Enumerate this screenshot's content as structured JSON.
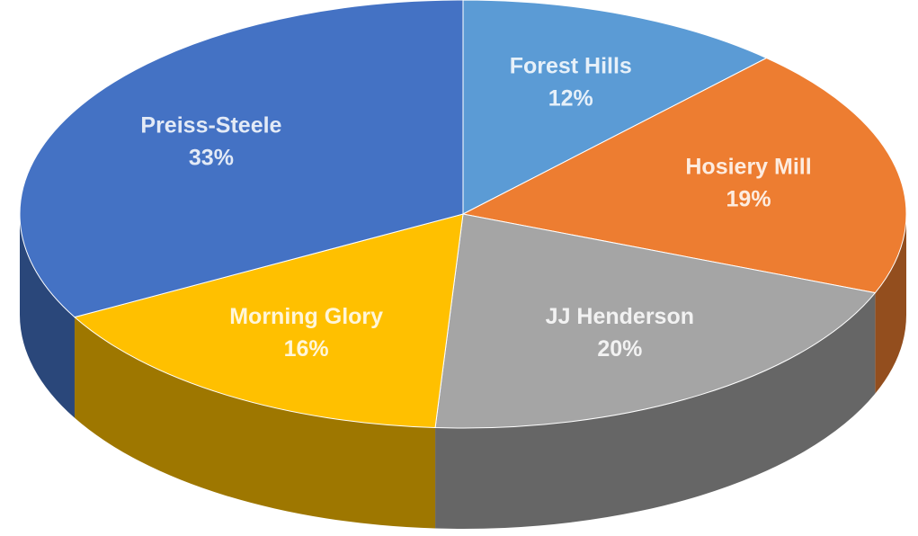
{
  "chart_data": {
    "type": "pie",
    "categories": [
      "Forest Hills",
      "Hosiery Mill",
      "JJ Henderson",
      "Morning Glory",
      "Preiss-Steele"
    ],
    "values": [
      12,
      19,
      20,
      16,
      33
    ],
    "value_labels": [
      "12%",
      "19%",
      "20%",
      "16%",
      "33%"
    ],
    "colors": [
      "#5b9bd5",
      "#ed7d31",
      "#a5a5a5",
      "#ffc000",
      "#4472c4"
    ]
  }
}
